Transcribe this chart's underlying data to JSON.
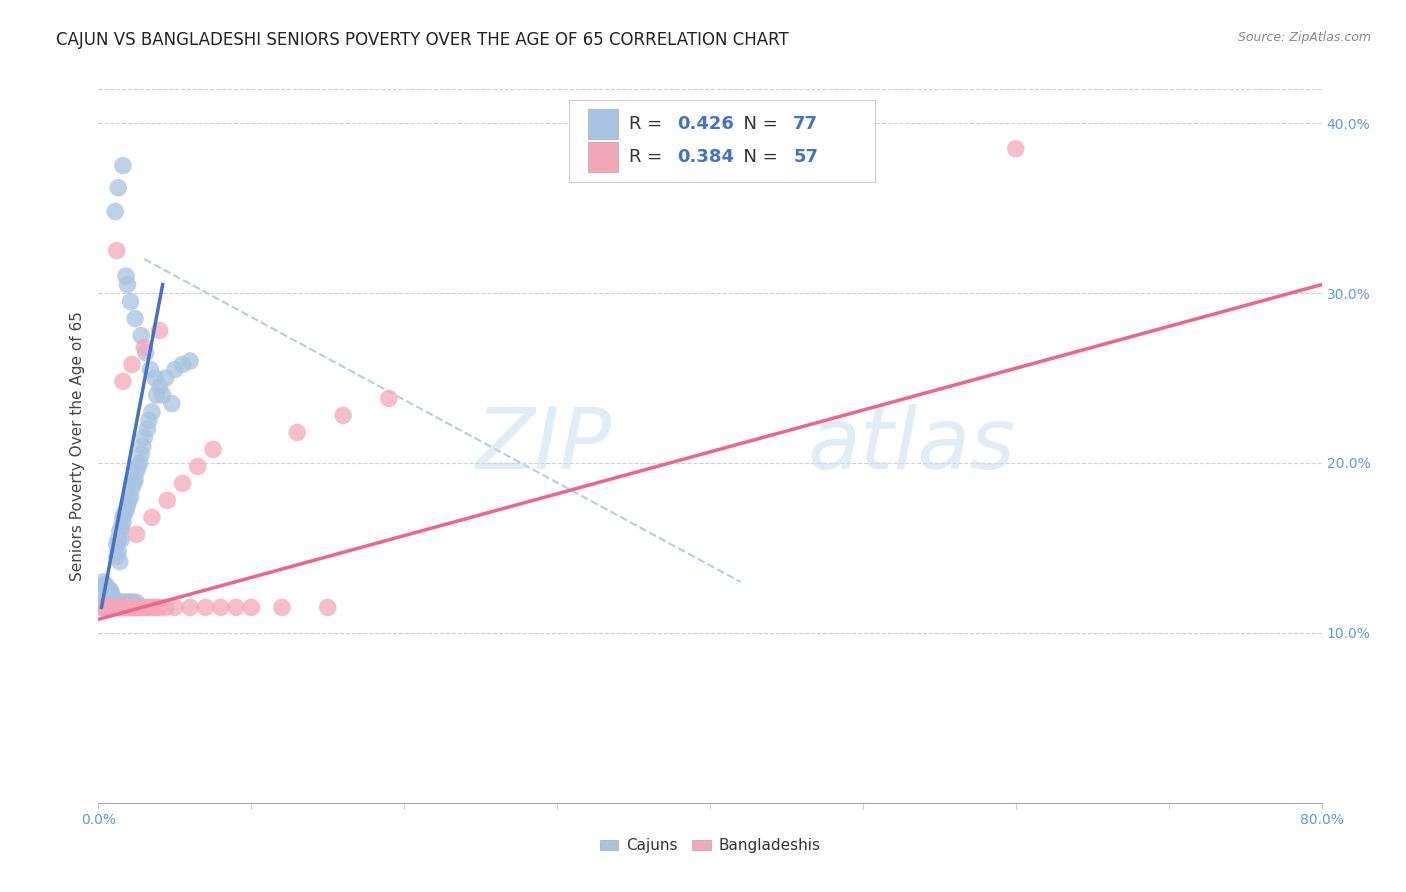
{
  "title": "CAJUN VS BANGLADESHI SENIORS POVERTY OVER THE AGE OF 65 CORRELATION CHART",
  "source": "Source: ZipAtlas.com",
  "ylabel": "Seniors Poverty Over the Age of 65",
  "xmin": 0.0,
  "xmax": 0.8,
  "ymin": 0.0,
  "ymax": 0.42,
  "xticks": [
    0.0,
    0.1,
    0.2,
    0.3,
    0.4,
    0.5,
    0.6,
    0.7,
    0.8
  ],
  "xticklabels_shown": {
    "0": "0.0%",
    "8": "80.0%"
  },
  "yticks_right": [
    0.1,
    0.2,
    0.3,
    0.4
  ],
  "yticklabels_right": [
    "10.0%",
    "20.0%",
    "30.0%",
    "40.0%"
  ],
  "cajun_color": "#a8c4e0",
  "bangladeshi_color": "#f4a7b9",
  "cajun_line_color": "#4472c4",
  "bangladeshi_line_color": "#f06292",
  "diagonal_color": "#b0c8d8",
  "R_cajun": 0.426,
  "N_cajun": 77,
  "R_bangladeshi": 0.384,
  "N_bangladeshi": 57,
  "watermark_zip": "ZIP",
  "watermark_atlas": "atlas",
  "legend_labels": [
    "Cajuns",
    "Bangladeshis"
  ],
  "cajun_line_x": [
    0.002,
    0.042
  ],
  "cajun_line_y": [
    0.115,
    0.305
  ],
  "bangladeshi_line_x": [
    0.0,
    0.8
  ],
  "bangladeshi_line_y": [
    0.108,
    0.305
  ],
  "diag_line_x": [
    0.03,
    0.42
  ],
  "diag_line_y": [
    0.32,
    0.13
  ],
  "background_color": "#ffffff",
  "grid_color": "#d0d0d0",
  "title_fontsize": 12,
  "axis_label_fontsize": 11,
  "tick_fontsize": 10,
  "legend_fontsize": 13,
  "right_tick_color": "#5b9bd5",
  "cajun_scatter": {
    "x": [
      0.002,
      0.003,
      0.004,
      0.005,
      0.005,
      0.006,
      0.006,
      0.007,
      0.007,
      0.008,
      0.008,
      0.008,
      0.009,
      0.009,
      0.01,
      0.01,
      0.01,
      0.011,
      0.011,
      0.012,
      0.012,
      0.012,
      0.013,
      0.013,
      0.013,
      0.014,
      0.014,
      0.015,
      0.015,
      0.015,
      0.016,
      0.016,
      0.016,
      0.017,
      0.017,
      0.018,
      0.018,
      0.019,
      0.019,
      0.02,
      0.02,
      0.021,
      0.021,
      0.022,
      0.022,
      0.023,
      0.023,
      0.024,
      0.025,
      0.025,
      0.026,
      0.027,
      0.028,
      0.029,
      0.03,
      0.032,
      0.033,
      0.035,
      0.038,
      0.04,
      0.044,
      0.05,
      0.055,
      0.06,
      0.011,
      0.013,
      0.016,
      0.018,
      0.019,
      0.021,
      0.024,
      0.028,
      0.031,
      0.034,
      0.037,
      0.042,
      0.048
    ],
    "y": [
      0.125,
      0.13,
      0.128,
      0.128,
      0.12,
      0.125,
      0.118,
      0.125,
      0.12,
      0.125,
      0.122,
      0.118,
      0.122,
      0.118,
      0.12,
      0.118,
      0.115,
      0.118,
      0.115,
      0.152,
      0.145,
      0.118,
      0.148,
      0.155,
      0.118,
      0.16,
      0.142,
      0.162,
      0.155,
      0.118,
      0.165,
      0.168,
      0.118,
      0.17,
      0.118,
      0.172,
      0.118,
      0.175,
      0.118,
      0.178,
      0.118,
      0.18,
      0.118,
      0.185,
      0.118,
      0.188,
      0.118,
      0.19,
      0.195,
      0.118,
      0.198,
      0.2,
      0.205,
      0.21,
      0.215,
      0.22,
      0.225,
      0.23,
      0.24,
      0.245,
      0.25,
      0.255,
      0.258,
      0.26,
      0.348,
      0.362,
      0.375,
      0.31,
      0.305,
      0.295,
      0.285,
      0.275,
      0.265,
      0.255,
      0.25,
      0.24,
      0.235
    ]
  },
  "bangladeshi_scatter": {
    "x": [
      0.002,
      0.003,
      0.004,
      0.005,
      0.006,
      0.007,
      0.008,
      0.009,
      0.01,
      0.011,
      0.012,
      0.013,
      0.014,
      0.015,
      0.016,
      0.017,
      0.018,
      0.019,
      0.02,
      0.021,
      0.022,
      0.023,
      0.024,
      0.025,
      0.026,
      0.027,
      0.028,
      0.03,
      0.032,
      0.034,
      0.036,
      0.038,
      0.04,
      0.044,
      0.05,
      0.06,
      0.07,
      0.08,
      0.09,
      0.1,
      0.12,
      0.15,
      0.025,
      0.035,
      0.045,
      0.055,
      0.065,
      0.075,
      0.13,
      0.16,
      0.19,
      0.016,
      0.022,
      0.03,
      0.04,
      0.6,
      0.012
    ],
    "y": [
      0.115,
      0.115,
      0.115,
      0.115,
      0.115,
      0.115,
      0.115,
      0.115,
      0.115,
      0.115,
      0.115,
      0.115,
      0.115,
      0.115,
      0.115,
      0.115,
      0.115,
      0.115,
      0.115,
      0.115,
      0.115,
      0.115,
      0.115,
      0.115,
      0.115,
      0.115,
      0.115,
      0.115,
      0.115,
      0.115,
      0.115,
      0.115,
      0.115,
      0.115,
      0.115,
      0.115,
      0.115,
      0.115,
      0.115,
      0.115,
      0.115,
      0.115,
      0.158,
      0.168,
      0.178,
      0.188,
      0.198,
      0.208,
      0.218,
      0.228,
      0.238,
      0.248,
      0.258,
      0.268,
      0.278,
      0.385,
      0.325
    ]
  }
}
